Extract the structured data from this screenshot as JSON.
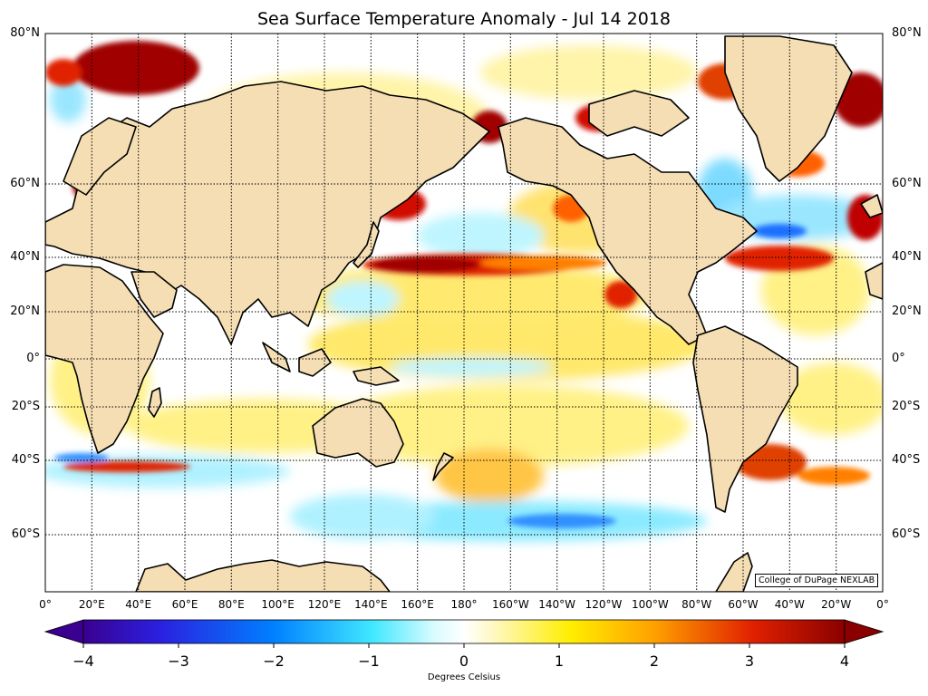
{
  "title": "Sea Surface Temperature Anomaly - Jul 14 2018",
  "lat_labels": [
    "80°N",
    "60°N",
    "40°N",
    "20°N",
    "0°",
    "20°S",
    "40°S",
    "60°S"
  ],
  "lon_labels": [
    "0°",
    "20°E",
    "40°E",
    "60°E",
    "80°E",
    "100°E",
    "120°E",
    "140°E",
    "160°E",
    "180°",
    "160°W",
    "140°W",
    "120°W",
    "100°W",
    "80°W",
    "60°W",
    "40°W",
    "20°W",
    "0°"
  ],
  "credit": "College of DuPage NEXLAB",
  "colorbar": {
    "ticks": [
      "−4",
      "−3",
      "−2",
      "−1",
      "0",
      "1",
      "2",
      "3",
      "4"
    ],
    "label": "Degrees Celsius",
    "min": -4,
    "max": 4
  },
  "colors": {
    "land": "#f5deb3",
    "coast": "#000000",
    "ocean_neutral": "#ffffff",
    "warm_max": "#a00000",
    "cool_max": "#3b00a0"
  }
}
